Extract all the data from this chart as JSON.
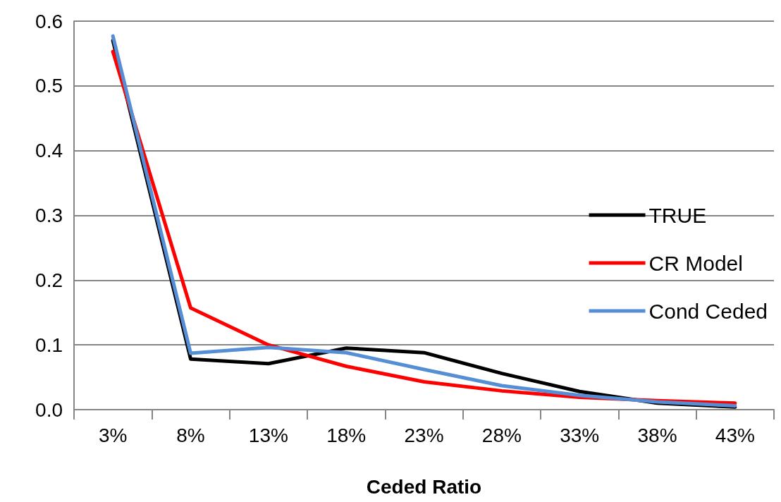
{
  "chart_data": {
    "type": "line",
    "xlabel": "Ceded Ratio",
    "categories": [
      "3%",
      "8%",
      "13%",
      "18%",
      "23%",
      "28%",
      "33%",
      "38%",
      "43%"
    ],
    "series": [
      {
        "name": "TRUE",
        "color": "#000000",
        "values": [
          0.57,
          0.078,
          0.071,
          0.095,
          0.088,
          0.056,
          0.028,
          0.01,
          0.004
        ]
      },
      {
        "name": "CR Model",
        "color": "#ff0000",
        "values": [
          0.553,
          0.157,
          0.1,
          0.067,
          0.043,
          0.029,
          0.019,
          0.014,
          0.01
        ]
      },
      {
        "name": "Cond Ceded",
        "color": "#558ed5",
        "values": [
          0.577,
          0.087,
          0.096,
          0.088,
          0.062,
          0.037,
          0.022,
          0.012,
          0.006
        ]
      }
    ],
    "ylim": [
      0,
      0.6
    ],
    "yticks": [
      {
        "value": 0,
        "label": "0.0"
      },
      {
        "value": 0.1,
        "label": "0.1"
      },
      {
        "value": 0.2,
        "label": "0.2"
      },
      {
        "value": 0.3,
        "label": "0.3"
      },
      {
        "value": 0.4,
        "label": "0.4"
      },
      {
        "value": 0.5,
        "label": "0.5"
      },
      {
        "value": 0.6,
        "label": "0.6"
      }
    ],
    "grid": "y",
    "legend": "right",
    "marker": "none",
    "line_style": "solid"
  }
}
